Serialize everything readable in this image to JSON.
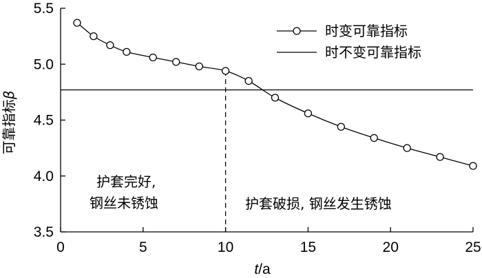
{
  "chart_data": {
    "type": "line",
    "xlabel": "t/a",
    "xlabel_italic_part": "t",
    "xlabel_unit_part": "/a",
    "ylabel": "可靠指标β",
    "ylabel_text_part": "可靠指标",
    "ylabel_symbol_part": "β",
    "xlim": [
      0,
      25
    ],
    "ylim": [
      3.5,
      5.5
    ],
    "xticks": [
      "0",
      "5",
      "10",
      "15",
      "20",
      "25"
    ],
    "yticks": [
      "3.5",
      "4.0",
      "4.5",
      "5.0",
      "5.5"
    ],
    "grid": false,
    "legend_position": "top-right",
    "series": [
      {
        "name": "时变可靠指标",
        "style": "line-with-open-circles",
        "x": [
          1,
          2,
          3,
          4,
          5.6,
          7,
          8.4,
          10,
          11.4,
          13,
          15,
          17,
          19,
          21,
          23,
          25
        ],
        "y": [
          5.37,
          5.25,
          5.17,
          5.11,
          5.06,
          5.02,
          4.98,
          4.94,
          4.85,
          4.7,
          4.56,
          4.44,
          4.34,
          4.25,
          4.17,
          4.09
        ]
      },
      {
        "name": "时不变可靠指标",
        "style": "solid-line",
        "x": [
          0,
          25
        ],
        "y": [
          4.77,
          4.77
        ]
      }
    ],
    "vline": {
      "x": 10,
      "style": "dashed"
    },
    "annotations": [
      {
        "lines": [
          "护套完好,",
          "钢丝未锈蚀"
        ]
      },
      {
        "lines": [
          "护套破损, 钢丝发生锈蚀"
        ]
      }
    ]
  }
}
